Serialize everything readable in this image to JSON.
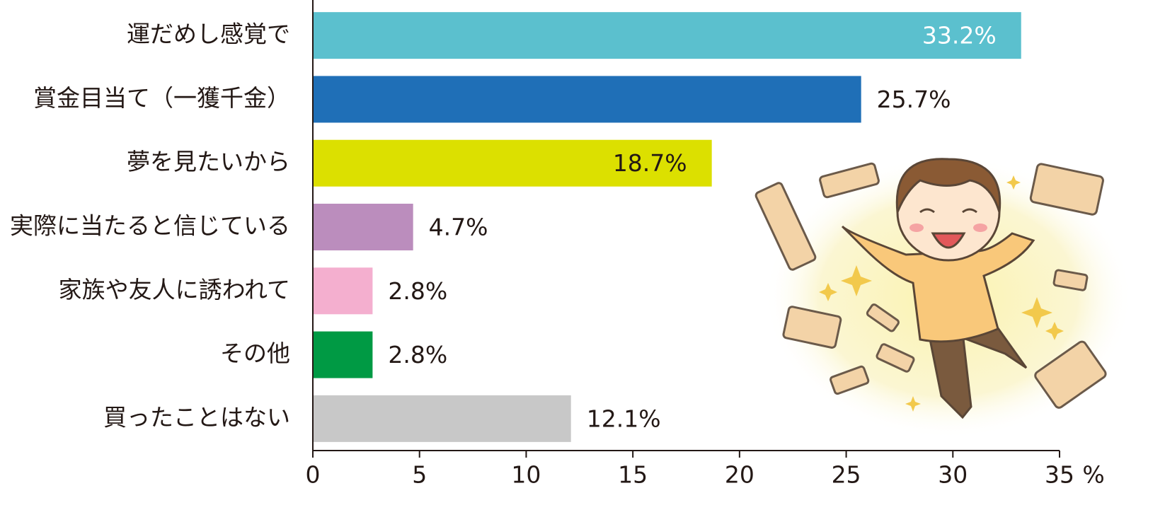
{
  "chart_data": {
    "type": "bar",
    "orientation": "horizontal",
    "categories": [
      "運だめし感覚で",
      "賞金目当て（一獲千金）",
      "夢を見たいから",
      "実際に当たると信じている",
      "家族や友人に誘われて",
      "その他",
      "買ったことはない"
    ],
    "values": [
      33.2,
      25.7,
      18.7,
      4.7,
      2.8,
      2.8,
      12.1
    ],
    "value_labels": [
      "33.2%",
      "25.7%",
      "18.7%",
      "4.7%",
      "2.8%",
      "2.8%",
      "12.1%"
    ],
    "colors": [
      "#5bc0ce",
      "#1f6fb7",
      "#dce000",
      "#bb8dbd",
      "#f4afcf",
      "#009a44",
      "#c8c8c8"
    ],
    "xlim": [
      0,
      35
    ],
    "xticks": [
      0,
      5,
      10,
      15,
      20,
      25,
      30,
      35
    ],
    "x_unit": "%",
    "grid": false
  }
}
